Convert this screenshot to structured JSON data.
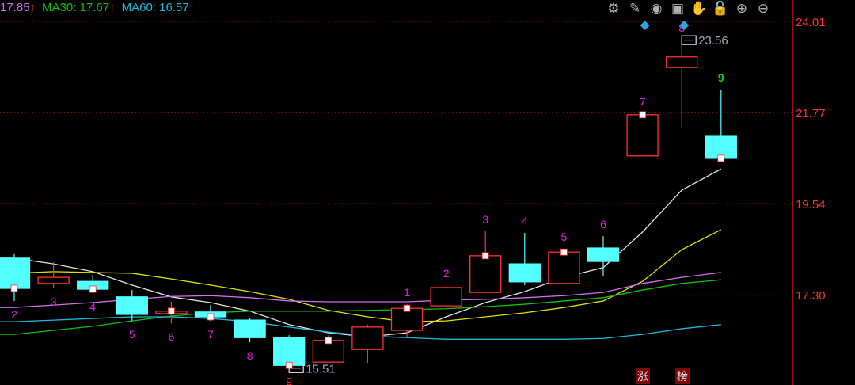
{
  "legend": [
    {
      "label": "17.85",
      "arrow": "↑",
      "color": "#d070e8"
    },
    {
      "label": "MA30: 17.67",
      "arrow": "↑",
      "color": "#10c010"
    },
    {
      "label": "MA60: 16.57",
      "arrow": "↑",
      "color": "#20b8d8"
    }
  ],
  "toolbar": [
    {
      "icon": "gear-icon",
      "glyph": "⚙"
    },
    {
      "icon": "pen-icon",
      "glyph": "✎"
    },
    {
      "icon": "eye-icon",
      "glyph": "◉"
    },
    {
      "icon": "toolbox-icon",
      "glyph": "▣"
    },
    {
      "icon": "hand-icon",
      "glyph": "✋"
    },
    {
      "icon": "unlock-icon",
      "glyph": "🔓"
    },
    {
      "icon": "zoom-in-icon",
      "glyph": "⊕"
    },
    {
      "icon": "zoom-out-icon",
      "glyph": "⊖"
    }
  ],
  "badges": [
    {
      "label": "涨"
    },
    {
      "label": "榜"
    }
  ],
  "colors": {
    "up": "#ff3232",
    "down": "#54ffff",
    "axis": "#d01818",
    "grid": "#a01010",
    "seq": "#e020e0"
  },
  "chart_data": {
    "type": "candlestick",
    "y_ticks": [
      "24.01",
      "21.77",
      "19.54",
      "17.30"
    ],
    "ylim": [
      15.2,
      24.5
    ],
    "grid": true,
    "candles": [
      {
        "o": 18.2,
        "c": 17.46,
        "h": 18.3,
        "l": 17.15
      },
      {
        "o": 17.58,
        "c": 17.73,
        "h": 18.1,
        "l": 17.46
      },
      {
        "o": 17.63,
        "c": 17.44,
        "h": 17.79,
        "l": 17.34
      },
      {
        "o": 17.25,
        "c": 16.82,
        "h": 17.42,
        "l": 16.66
      },
      {
        "o": 16.84,
        "c": 16.9,
        "h": 17.13,
        "l": 16.6
      },
      {
        "o": 16.88,
        "c": 16.76,
        "h": 17.05,
        "l": 16.66
      },
      {
        "o": 16.68,
        "c": 16.25,
        "h": 16.72,
        "l": 16.14
      },
      {
        "o": 16.25,
        "c": 15.57,
        "h": 16.31,
        "l": 15.51
      },
      {
        "o": 15.65,
        "c": 16.18,
        "h": 16.31,
        "l": 15.65
      },
      {
        "o": 15.96,
        "c": 16.51,
        "h": 16.57,
        "l": 15.63
      },
      {
        "o": 16.43,
        "c": 16.97,
        "h": 17.07,
        "l": 16.27
      },
      {
        "o": 17.03,
        "c": 17.48,
        "h": 17.54,
        "l": 16.97
      },
      {
        "o": 17.36,
        "c": 18.26,
        "h": 18.86,
        "l": 17.36
      },
      {
        "o": 18.06,
        "c": 17.62,
        "h": 18.82,
        "l": 17.54
      },
      {
        "o": 17.58,
        "c": 18.35,
        "h": 18.43,
        "l": 17.58
      },
      {
        "o": 18.45,
        "c": 18.12,
        "h": 18.74,
        "l": 17.75
      },
      {
        "o": 20.71,
        "c": 21.72,
        "h": 21.75,
        "l": 20.71
      },
      {
        "o": 22.88,
        "c": 23.14,
        "h": 23.56,
        "l": 21.42
      },
      {
        "o": 21.19,
        "c": 20.65,
        "h": 22.34,
        "l": 20.65
      }
    ],
    "moving_averages": [
      {
        "color": "#e0e0e0",
        "values": [
          18.2,
          18.06,
          17.87,
          17.54,
          17.25,
          17.11,
          16.9,
          16.57,
          16.37,
          16.27,
          16.37,
          16.76,
          17.11,
          17.38,
          17.73,
          17.97,
          18.84,
          19.87,
          20.39
        ]
      },
      {
        "color": "#e0e000",
        "values": [
          17.83,
          17.87,
          17.85,
          17.83,
          17.69,
          17.54,
          17.38,
          17.19,
          16.92,
          16.76,
          16.64,
          16.66,
          16.76,
          16.86,
          16.99,
          17.15,
          17.63,
          18.41,
          18.9
        ]
      },
      {
        "color": "#d070e8",
        "values": [
          16.99,
          17.05,
          17.11,
          17.19,
          17.26,
          17.28,
          17.23,
          17.15,
          17.13,
          17.13,
          17.13,
          17.17,
          17.19,
          17.23,
          17.28,
          17.36,
          17.58,
          17.73,
          17.85
        ]
      },
      {
        "color": "#10c010",
        "values": [
          16.33,
          16.43,
          16.53,
          16.66,
          16.78,
          16.86,
          16.9,
          16.9,
          16.9,
          16.92,
          16.94,
          16.96,
          17.01,
          17.07,
          17.15,
          17.23,
          17.42,
          17.58,
          17.67
        ]
      },
      {
        "color": "#20b8d8",
        "values": [
          16.64,
          16.68,
          16.72,
          16.76,
          16.76,
          16.72,
          16.64,
          16.51,
          16.39,
          16.29,
          16.25,
          16.21,
          16.21,
          16.21,
          16.21,
          16.23,
          16.33,
          16.47,
          16.57
        ]
      }
    ],
    "sequence_labels": [
      {
        "candle": 0,
        "text": "2",
        "pos": "below",
        "color": "#e020e0"
      },
      {
        "candle": 1,
        "text": "3",
        "pos": "below",
        "color": "#e020e0"
      },
      {
        "candle": 2,
        "text": "4",
        "pos": "below",
        "color": "#e020e0"
      },
      {
        "candle": 3,
        "text": "5",
        "pos": "below",
        "color": "#e020e0"
      },
      {
        "candle": 4,
        "text": "6",
        "pos": "below",
        "color": "#e020e0"
      },
      {
        "candle": 5,
        "text": "7",
        "pos": "below",
        "color": "#e020e0"
      },
      {
        "candle": 6,
        "text": "8",
        "pos": "below",
        "color": "#e020e0"
      },
      {
        "candle": 7,
        "text": "9",
        "pos": "below",
        "color": "#ff2020"
      },
      {
        "candle": 10,
        "text": "1",
        "pos": "above",
        "color": "#e020e0"
      },
      {
        "candle": 11,
        "text": "2",
        "pos": "above",
        "color": "#e020e0"
      },
      {
        "candle": 12,
        "text": "3",
        "pos": "above",
        "color": "#e020e0"
      },
      {
        "candle": 13,
        "text": "4",
        "pos": "above",
        "color": "#e020e0"
      },
      {
        "candle": 14,
        "text": "5",
        "pos": "above",
        "color": "#e020e0"
      },
      {
        "candle": 15,
        "text": "6",
        "pos": "above",
        "color": "#e020e0"
      },
      {
        "candle": 16,
        "text": "7",
        "pos": "above",
        "color": "#e020e0"
      },
      {
        "candle": 17,
        "text": "8",
        "pos": "above",
        "color": "#e020e0"
      },
      {
        "candle": 18,
        "text": "9",
        "pos": "above",
        "color": "#10d010"
      }
    ],
    "annotations": [
      {
        "candle": 17,
        "text": "23.56",
        "type": "high"
      },
      {
        "candle": 7,
        "text": "15.51",
        "type": "low"
      }
    ],
    "markers": [
      0,
      2,
      4,
      5,
      7,
      8,
      10,
      12,
      14,
      16,
      18
    ],
    "signal_diamonds": [
      16,
      17
    ]
  }
}
